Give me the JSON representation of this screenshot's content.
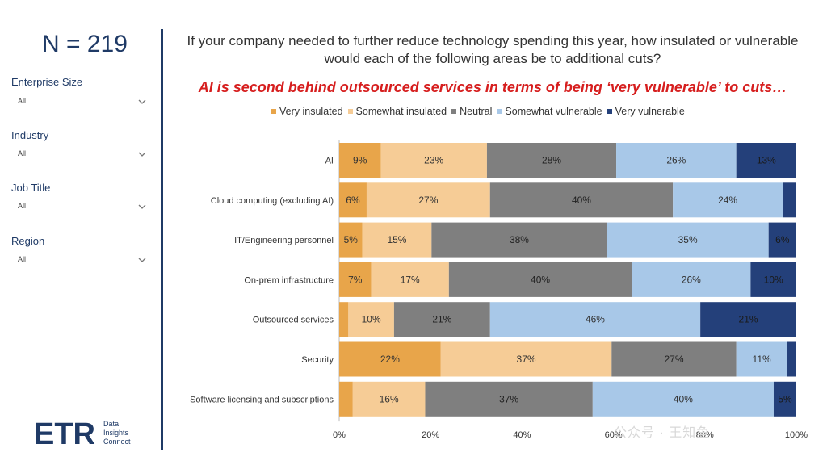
{
  "sidebar": {
    "n_label": "N = 219",
    "filters": [
      {
        "label": "Enterprise Size",
        "value": "All"
      },
      {
        "label": "Industry",
        "value": "All"
      },
      {
        "label": "Job Title",
        "value": "All"
      },
      {
        "label": "Region",
        "value": "All"
      }
    ]
  },
  "logo": {
    "text": "ETR",
    "line1": "Data",
    "line2": "Insights",
    "line3": "Connect"
  },
  "watermark": "公众号 · 王知鱼",
  "colors": {
    "very_insulated": "#e8a54a",
    "somewhat_insulated": "#f6cc96",
    "neutral": "#7f7f7f",
    "somewhat_vulnerable": "#a8c8e8",
    "very_vulnerable": "#24407a",
    "title": "#1f3a66",
    "subtitle": "#d61e1e"
  },
  "chart_data": {
    "type": "bar",
    "orientation": "horizontal-stacked-100",
    "title": "If your company needed to further reduce technology spending this year, how insulated or vulnerable would each of the following areas be to additional cuts?",
    "subtitle": "AI is second behind outsourced services in terms of being ‘very vulnerable’ to cuts…",
    "categories": [
      "AI",
      "Cloud computing (excluding AI)",
      "IT/Engineering personnel",
      "On-prem infrastructure",
      "Outsourced services",
      "Security",
      "Software licensing and subscriptions"
    ],
    "series": [
      {
        "name": "Very insulated",
        "values": [
          9,
          6,
          5,
          7,
          2,
          22,
          3
        ]
      },
      {
        "name": "Somewhat insulated",
        "values": [
          23,
          27,
          15,
          17,
          10,
          37,
          16
        ]
      },
      {
        "name": "Neutral",
        "values": [
          28,
          40,
          38,
          40,
          21,
          27,
          37
        ]
      },
      {
        "name": "Somewhat vulnerable",
        "values": [
          26,
          24,
          35,
          26,
          46,
          11,
          40
        ]
      },
      {
        "name": "Very vulnerable",
        "values": [
          13,
          3,
          6,
          10,
          21,
          2,
          5
        ]
      }
    ],
    "labels_shown": [
      [
        "9%",
        "23%",
        "28%",
        "26%",
        "13%"
      ],
      [
        "6%",
        "27%",
        "40%",
        "24%",
        ""
      ],
      [
        "5%",
        "15%",
        "38%",
        "35%",
        "6%"
      ],
      [
        "7%",
        "17%",
        "40%",
        "26%",
        "10%"
      ],
      [
        "",
        "10%",
        "21%",
        "46%",
        "21%"
      ],
      [
        "22%",
        "37%",
        "27%",
        "11%",
        ""
      ],
      [
        "",
        "16%",
        "37%",
        "40%",
        "5%"
      ]
    ],
    "x_ticks": [
      "0%",
      "20%",
      "40%",
      "60%",
      "80%",
      "100%"
    ],
    "xlim": [
      0,
      100
    ],
    "legend_position": "top"
  }
}
